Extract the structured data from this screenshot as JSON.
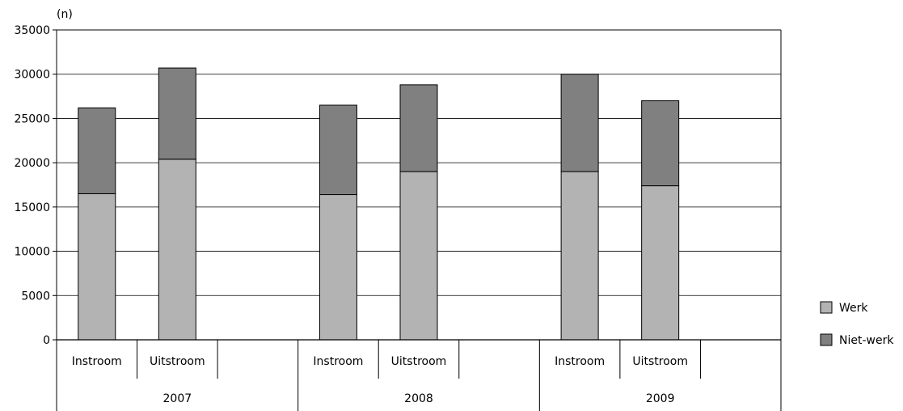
{
  "chart_data": {
    "type": "bar",
    "stacked": true,
    "unit_label": "(n)",
    "ylim": [
      0,
      35000
    ],
    "yticks": [
      0,
      5000,
      10000,
      15000,
      20000,
      25000,
      30000,
      35000
    ],
    "grid": true,
    "legend_position": "right",
    "groups": [
      "2007",
      "2008",
      "2009"
    ],
    "subcategories": [
      "Instroom",
      "Uitstroom"
    ],
    "categories": [
      "2007 Instroom",
      "2007 Uitstroom",
      "2008 Instroom",
      "2008 Uitstroom",
      "2009 Instroom",
      "2009 Uitstroom"
    ],
    "series": [
      {
        "name": "Werk",
        "color": "#b3b3b3",
        "values": [
          16500,
          20400,
          16400,
          19000,
          19000,
          17400
        ]
      },
      {
        "name": "Niet-werk",
        "color": "#808080",
        "values": [
          9700,
          10300,
          10100,
          9800,
          11000,
          9600
        ]
      }
    ]
  }
}
